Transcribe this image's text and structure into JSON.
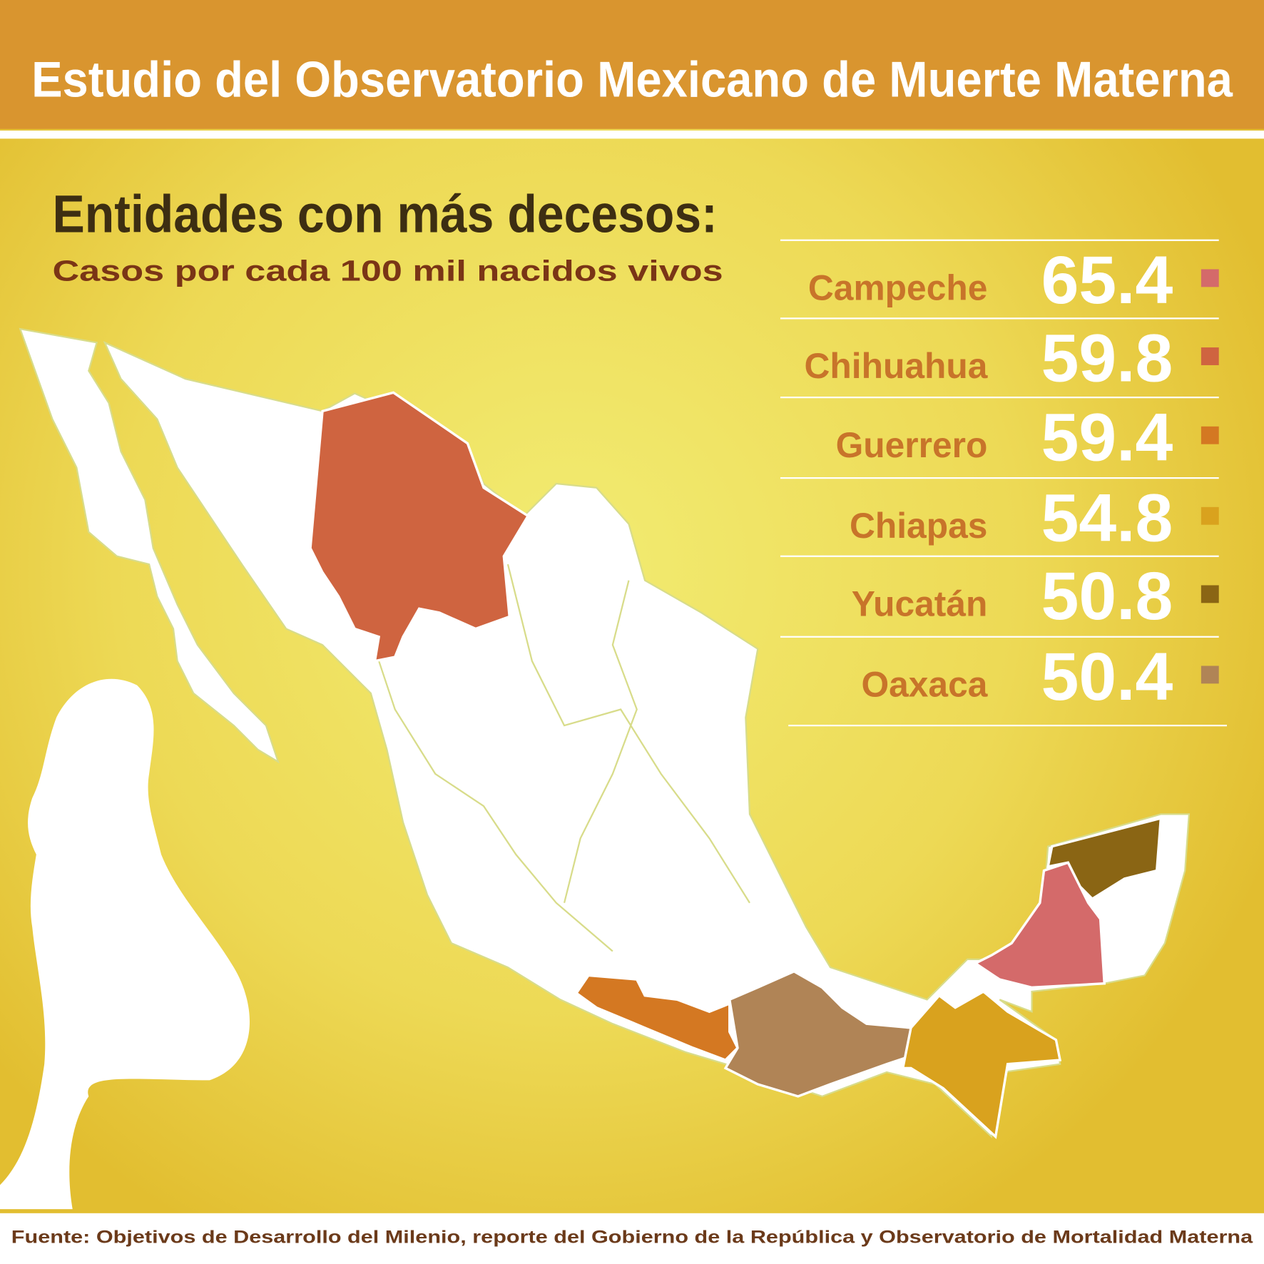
{
  "header": {
    "title": "Estudio del Observatorio Mexicano de Muerte Materna"
  },
  "heading": "Entidades con más decesos:",
  "subheading": "Casos por cada 100 mil nacidos vivos",
  "entries": [
    {
      "name": "Campeche",
      "value": 65.4,
      "color": "#D46A6A"
    },
    {
      "name": "Chihuahua",
      "value": 59.8,
      "color": "#CF6440"
    },
    {
      "name": "Guerrero",
      "value": 59.4,
      "color": "#D47822"
    },
    {
      "name": "Chiapas",
      "value": 54.8,
      "color": "#D9A21E"
    },
    {
      "name": "Yucatán",
      "value": 50.8,
      "color": "#8A6514"
    },
    {
      "name": "Oaxaca",
      "value": 50.4,
      "color": "#B08456"
    }
  ],
  "source": "Fuente: Objetivos de Desarrollo del Milenio, reporte del Gobierno de la República y Observatorio de Mortalidad Materna"
}
